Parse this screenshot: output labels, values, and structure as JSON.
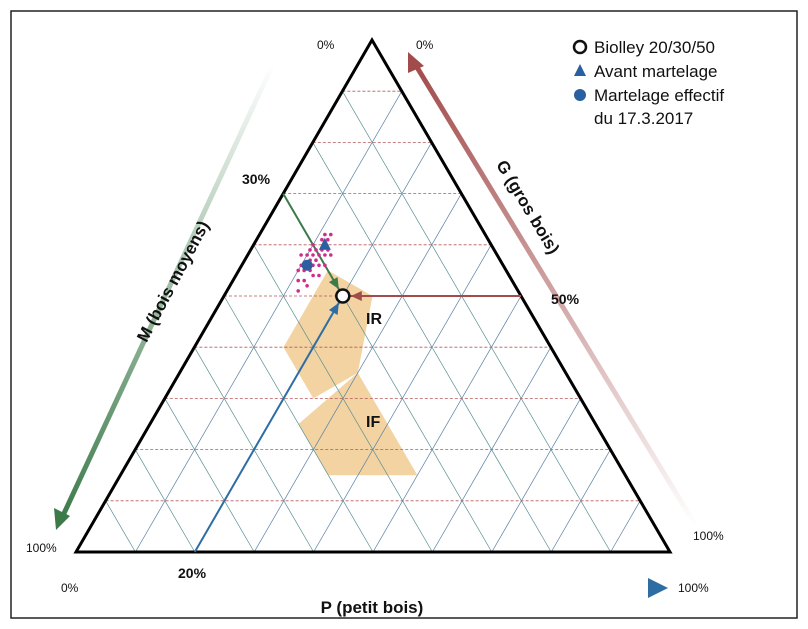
{
  "chart_data": {
    "type": "scatter",
    "subtype": "ternary",
    "axes": {
      "P": {
        "label": "P (petit bois)",
        "min_label": "0%",
        "max_label": "100%",
        "color": "#2e6da4"
      },
      "M": {
        "label": "M  (bois moyens)",
        "min_label": "0%",
        "max_label": "100%",
        "color": "#3c7a4a"
      },
      "G": {
        "label": "G (gros bois)",
        "min_label": "100%",
        "max_label": "0%",
        "color": "#a24b4b"
      }
    },
    "reference": {
      "name": "Biolley 20/30/50",
      "P": 20,
      "M": 30,
      "G": 50,
      "labels": {
        "P": "20%",
        "M": "30%",
        "G": "50%"
      }
    },
    "series": [
      {
        "name": "Avant martelage",
        "marker": "triangle",
        "color": "#2a5fa0",
        "points": [
          {
            "P": 12,
            "M": 28,
            "G": 60
          }
        ]
      },
      {
        "name": "Martelage effectif\ndu 17.3.2017",
        "marker": "circle",
        "color": "#2a5fa0",
        "points": [
          {
            "P": 11,
            "M": 33,
            "G": 56
          }
        ]
      }
    ],
    "scatter_cloud": {
      "color": "#d02d8a",
      "points": [
        {
          "P": 12,
          "M": 30,
          "G": 58
        },
        {
          "P": 13,
          "M": 29,
          "G": 58
        },
        {
          "P": 11,
          "M": 31,
          "G": 58
        },
        {
          "P": 12,
          "M": 31,
          "G": 57
        },
        {
          "P": 10,
          "M": 32,
          "G": 58
        },
        {
          "P": 13,
          "M": 31,
          "G": 56
        },
        {
          "P": 11,
          "M": 34,
          "G": 55
        },
        {
          "P": 10,
          "M": 35,
          "G": 55
        },
        {
          "P": 12,
          "M": 33,
          "G": 55
        },
        {
          "P": 11,
          "M": 30,
          "G": 59
        },
        {
          "P": 13,
          "M": 28,
          "G": 59
        },
        {
          "P": 12,
          "M": 27,
          "G": 61
        },
        {
          "P": 14,
          "M": 28,
          "G": 58
        },
        {
          "P": 12,
          "M": 29,
          "G": 59
        },
        {
          "P": 11,
          "M": 32,
          "G": 57
        },
        {
          "P": 10,
          "M": 34,
          "G": 56
        },
        {
          "P": 12,
          "M": 35,
          "G": 53
        },
        {
          "P": 11,
          "M": 36,
          "G": 53
        },
        {
          "P": 13,
          "M": 33,
          "G": 54
        },
        {
          "P": 14,
          "M": 30,
          "G": 56
        },
        {
          "P": 12,
          "M": 26,
          "G": 62
        },
        {
          "P": 11,
          "M": 27,
          "G": 62
        },
        {
          "P": 10,
          "M": 30,
          "G": 60
        },
        {
          "P": 9,
          "M": 33,
          "G": 58
        },
        {
          "P": 13,
          "M": 35,
          "G": 52
        },
        {
          "P": 12,
          "M": 37,
          "G": 51
        },
        {
          "P": 11,
          "M": 28,
          "G": 61
        },
        {
          "P": 12,
          "M": 32,
          "G": 56
        },
        {
          "P": 14,
          "M": 32,
          "G": 54
        },
        {
          "P": 10,
          "M": 31,
          "G": 59
        }
      ]
    },
    "regions": [
      {
        "name": "IR",
        "color": "#f2d3a1",
        "vertices": [
          {
            "P": 15,
            "M": 30,
            "G": 55
          },
          {
            "P": 15,
            "M": 45,
            "G": 40
          },
          {
            "P": 25,
            "M": 45,
            "G": 30
          },
          {
            "P": 30,
            "M": 35,
            "G": 35
          },
          {
            "P": 25,
            "M": 25,
            "G": 50
          }
        ]
      },
      {
        "name": "IF",
        "color": "#f2d3a1",
        "vertices": [
          {
            "P": 30,
            "M": 35,
            "G": 35
          },
          {
            "P": 25,
            "M": 50,
            "G": 25
          },
          {
            "P": 35,
            "M": 50,
            "G": 15
          },
          {
            "P": 50,
            "M": 35,
            "G": 15
          },
          {
            "P": 40,
            "M": 35,
            "G": 25
          }
        ]
      }
    ],
    "legend": {
      "placement": "top-right",
      "items": [
        {
          "marker": "open-circle",
          "label": "Biolley 20/30/50"
        },
        {
          "marker": "triangle",
          "label": "Avant martelage"
        },
        {
          "marker": "circle",
          "label": "Martelage effectif"
        }
      ],
      "extra_line": "du 17.3.2017"
    },
    "grid": true,
    "grid_step": 10
  }
}
